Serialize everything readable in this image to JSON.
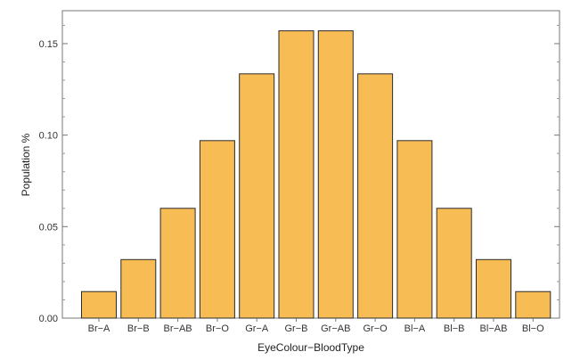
{
  "chart_data": {
    "type": "bar",
    "title": "",
    "xlabel": "EyeColour−BloodType",
    "ylabel": "Population %",
    "categories": [
      "Br−A",
      "Br−B",
      "Br−AB",
      "Br−O",
      "Gr−A",
      "Gr−B",
      "Gr−AB",
      "Gr−O",
      "Bl−A",
      "Bl−B",
      "Bl−AB",
      "Bl−O"
    ],
    "values": [
      0.0145,
      0.032,
      0.06,
      0.097,
      0.1335,
      0.157,
      0.157,
      0.1335,
      0.097,
      0.06,
      0.032,
      0.0145
    ],
    "ylim": [
      0,
      0.168
    ],
    "yticks": [
      "0.00",
      "0.05",
      "0.10",
      "0.15"
    ],
    "grid": false,
    "bar_color": "#F8BC55",
    "bar_edge_color": "#2b2b2b"
  }
}
